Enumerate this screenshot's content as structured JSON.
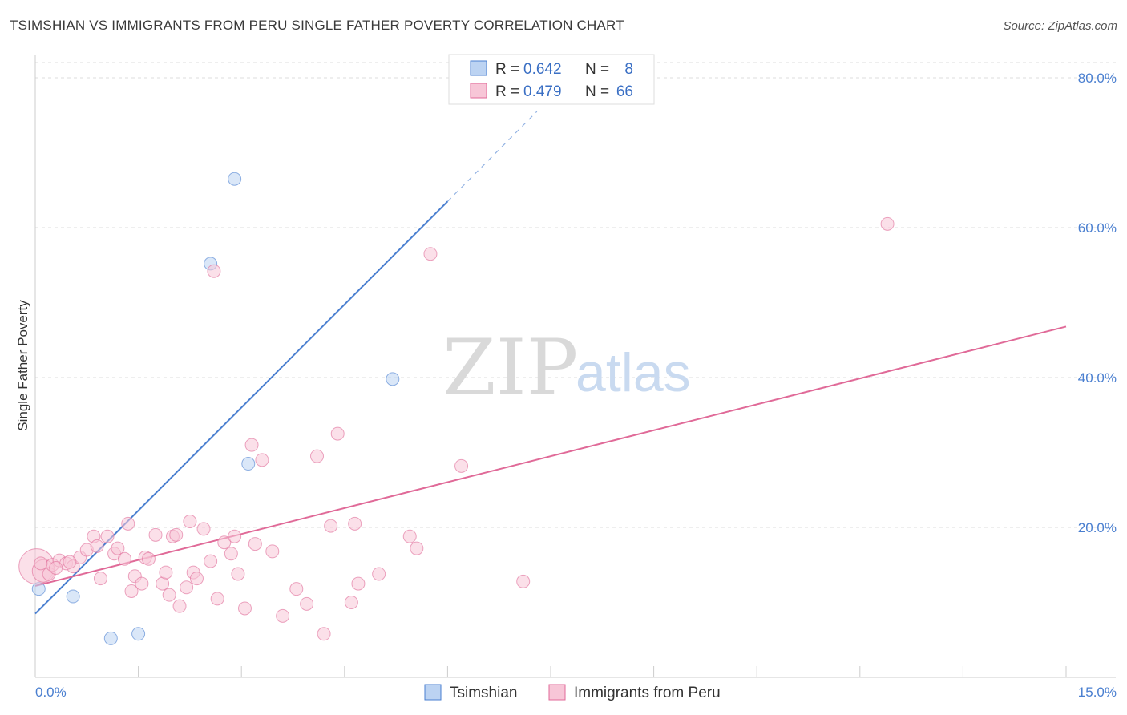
{
  "title": "TSIMSHIAN VS IMMIGRANTS FROM PERU SINGLE FATHER POVERTY CORRELATION CHART",
  "source": "Source: ZipAtlas.com",
  "watermark": {
    "zip": "ZIP",
    "atlas": "atlas"
  },
  "chart_data": {
    "type": "scatter",
    "xlabel": "",
    "ylabel": "Single Father Poverty",
    "xlim": [
      0,
      15
    ],
    "ylim": [
      0,
      80
    ],
    "x_tick_labels": [
      {
        "value": 0,
        "label": "0.0%"
      },
      {
        "value": 15,
        "label": "15.0%"
      }
    ],
    "y_tick_labels": [
      {
        "value": 20,
        "label": "20.0%"
      },
      {
        "value": 40,
        "label": "40.0%"
      },
      {
        "value": 60,
        "label": "60.0%"
      },
      {
        "value": 80,
        "label": "80.0%"
      }
    ],
    "legend": {
      "position": "top-center",
      "entries": [
        {
          "r_label": "R = ",
          "r_value": "0.642",
          "n_label": "N = ",
          "n_value": "8"
        },
        {
          "r_label": "R = ",
          "r_value": "0.479",
          "n_label": "N = ",
          "n_value": "66"
        }
      ]
    },
    "series": [
      {
        "name": "Tsimshian",
        "color": "#4a7fd0",
        "fill": "#bcd3f2",
        "trend": {
          "x0": 0,
          "y0": 8.5,
          "x1": 6.0,
          "y1": 63.5,
          "dash_x1": 7.3,
          "dash_y1": 75.5
        },
        "points": [
          [
            0.05,
            11.8
          ],
          [
            0.55,
            10.8
          ],
          [
            1.1,
            5.2
          ],
          [
            1.5,
            5.8
          ],
          [
            2.55,
            55.2
          ],
          [
            2.9,
            66.5
          ],
          [
            3.1,
            28.5
          ],
          [
            5.2,
            39.8
          ]
        ]
      },
      {
        "name": "Immigrants from Peru",
        "color": "#e06a98",
        "fill": "#f7c6d7",
        "trend": {
          "x0": 0,
          "y0": 12.2,
          "x1": 15.0,
          "y1": 46.8
        },
        "points": [
          [
            0.02,
            14.8
          ],
          [
            0.12,
            14.2
          ],
          [
            0.2,
            13.8
          ],
          [
            0.25,
            15.0
          ],
          [
            0.35,
            15.6
          ],
          [
            0.45,
            15.2
          ],
          [
            0.55,
            14.8
          ],
          [
            0.65,
            16.0
          ],
          [
            0.75,
            17.0
          ],
          [
            0.85,
            18.8
          ],
          [
            0.9,
            17.5
          ],
          [
            0.95,
            13.2
          ],
          [
            1.05,
            18.8
          ],
          [
            1.15,
            16.5
          ],
          [
            1.2,
            17.2
          ],
          [
            1.3,
            15.8
          ],
          [
            1.35,
            20.5
          ],
          [
            1.4,
            11.5
          ],
          [
            1.45,
            13.5
          ],
          [
            1.55,
            12.5
          ],
          [
            1.6,
            16.0
          ],
          [
            1.65,
            15.8
          ],
          [
            1.75,
            19.0
          ],
          [
            1.85,
            12.5
          ],
          [
            1.9,
            14.0
          ],
          [
            1.95,
            11.0
          ],
          [
            2.0,
            18.8
          ],
          [
            2.05,
            19.0
          ],
          [
            2.1,
            9.5
          ],
          [
            2.2,
            12.0
          ],
          [
            2.25,
            20.8
          ],
          [
            2.3,
            14.0
          ],
          [
            2.35,
            13.2
          ],
          [
            2.45,
            19.8
          ],
          [
            2.55,
            15.5
          ],
          [
            2.6,
            54.2
          ],
          [
            2.65,
            10.5
          ],
          [
            2.75,
            18.0
          ],
          [
            2.85,
            16.5
          ],
          [
            2.9,
            18.8
          ],
          [
            2.95,
            13.8
          ],
          [
            3.05,
            9.2
          ],
          [
            3.15,
            31.0
          ],
          [
            3.2,
            17.8
          ],
          [
            3.3,
            29.0
          ],
          [
            3.45,
            16.8
          ],
          [
            3.6,
            8.2
          ],
          [
            3.8,
            11.8
          ],
          [
            3.95,
            9.8
          ],
          [
            4.1,
            29.5
          ],
          [
            4.2,
            5.8
          ],
          [
            4.3,
            20.2
          ],
          [
            4.4,
            32.5
          ],
          [
            4.6,
            10.0
          ],
          [
            4.65,
            20.5
          ],
          [
            4.7,
            12.5
          ],
          [
            5.0,
            13.8
          ],
          [
            5.45,
            18.8
          ],
          [
            5.55,
            17.2
          ],
          [
            5.75,
            56.5
          ],
          [
            6.2,
            28.2
          ],
          [
            7.1,
            12.8
          ],
          [
            12.4,
            60.5
          ],
          [
            0.08,
            15.2
          ],
          [
            0.3,
            14.6
          ],
          [
            0.5,
            15.4
          ]
        ]
      }
    ]
  },
  "bottom_legend": [
    {
      "label": "Tsimshian"
    },
    {
      "label": "Immigrants from Peru"
    }
  ]
}
